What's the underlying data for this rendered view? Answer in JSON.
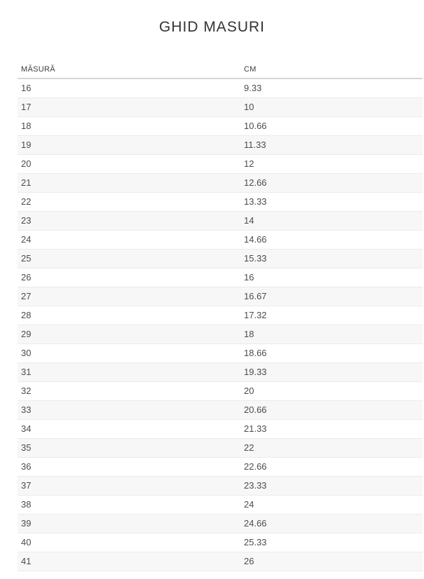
{
  "page": {
    "title": "GHID MASURI"
  },
  "size_table": {
    "columns": [
      "MĂSURĂ",
      "CM"
    ],
    "rows": [
      {
        "size": "16",
        "cm": "9.33"
      },
      {
        "size": "17",
        "cm": "10"
      },
      {
        "size": "18",
        "cm": "10.66"
      },
      {
        "size": "19",
        "cm": "11.33"
      },
      {
        "size": "20",
        "cm": "12"
      },
      {
        "size": "21",
        "cm": "12.66"
      },
      {
        "size": "22",
        "cm": "13.33"
      },
      {
        "size": "23",
        "cm": "14"
      },
      {
        "size": "24",
        "cm": "14.66"
      },
      {
        "size": "25",
        "cm": "15.33"
      },
      {
        "size": "26",
        "cm": "16"
      },
      {
        "size": "27",
        "cm": "16.67"
      },
      {
        "size": "28",
        "cm": "17.32"
      },
      {
        "size": "29",
        "cm": "18"
      },
      {
        "size": "30",
        "cm": "18.66"
      },
      {
        "size": "31",
        "cm": "19.33"
      },
      {
        "size": "32",
        "cm": "20"
      },
      {
        "size": "33",
        "cm": "20.66"
      },
      {
        "size": "34",
        "cm": "21.33"
      },
      {
        "size": "35",
        "cm": "22"
      },
      {
        "size": "36",
        "cm": "22.66"
      },
      {
        "size": "37",
        "cm": "23.33"
      },
      {
        "size": "38",
        "cm": "24"
      },
      {
        "size": "39",
        "cm": "24.66"
      },
      {
        "size": "40",
        "cm": "25.33"
      },
      {
        "size": "41",
        "cm": "26"
      }
    ]
  },
  "colors": {
    "background": "#ffffff",
    "title_text": "#333333",
    "header_text": "#3d3d3d",
    "cell_text": "#4c4c4c",
    "alt_row_bg": "#f7f7f7",
    "row_border": "#ebebeb",
    "header_border": "#d6d6d6"
  }
}
